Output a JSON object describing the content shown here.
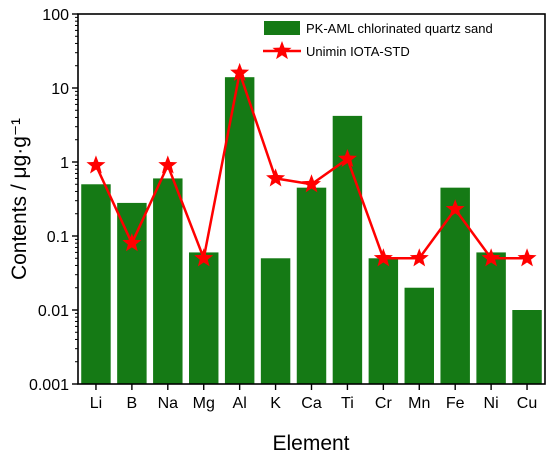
{
  "chart_data": {
    "type": "bar",
    "categories": [
      "Li",
      "B",
      "Na",
      "Mg",
      "Al",
      "K",
      "Ca",
      "Ti",
      "Cr",
      "Mn",
      "Fe",
      "Ni",
      "Cu"
    ],
    "series": [
      {
        "name": "PK-AML chlorinated quartz sand",
        "type": "bar",
        "color": "#157a15",
        "values": [
          0.5,
          0.28,
          0.6,
          0.06,
          14,
          0.05,
          0.45,
          4.2,
          0.05,
          0.02,
          0.45,
          0.06,
          0.01
        ]
      },
      {
        "name": "Unimin IOTA-STD",
        "type": "line",
        "marker": "star",
        "color": "#ff0000",
        "values": [
          0.9,
          0.08,
          0.9,
          0.05,
          16,
          0.6,
          0.5,
          1.1,
          0.05,
          0.05,
          0.23,
          0.05,
          0.05
        ]
      }
    ],
    "xlabel": "Element",
    "ylabel": "Contents / μg·g⁻¹",
    "yscale": "log",
    "ylim": [
      0.001,
      100
    ],
    "yticks": [
      "0.001",
      "0.01",
      "0.1",
      "1",
      "10",
      "100"
    ],
    "grid": false,
    "legend_position": "top-right"
  }
}
